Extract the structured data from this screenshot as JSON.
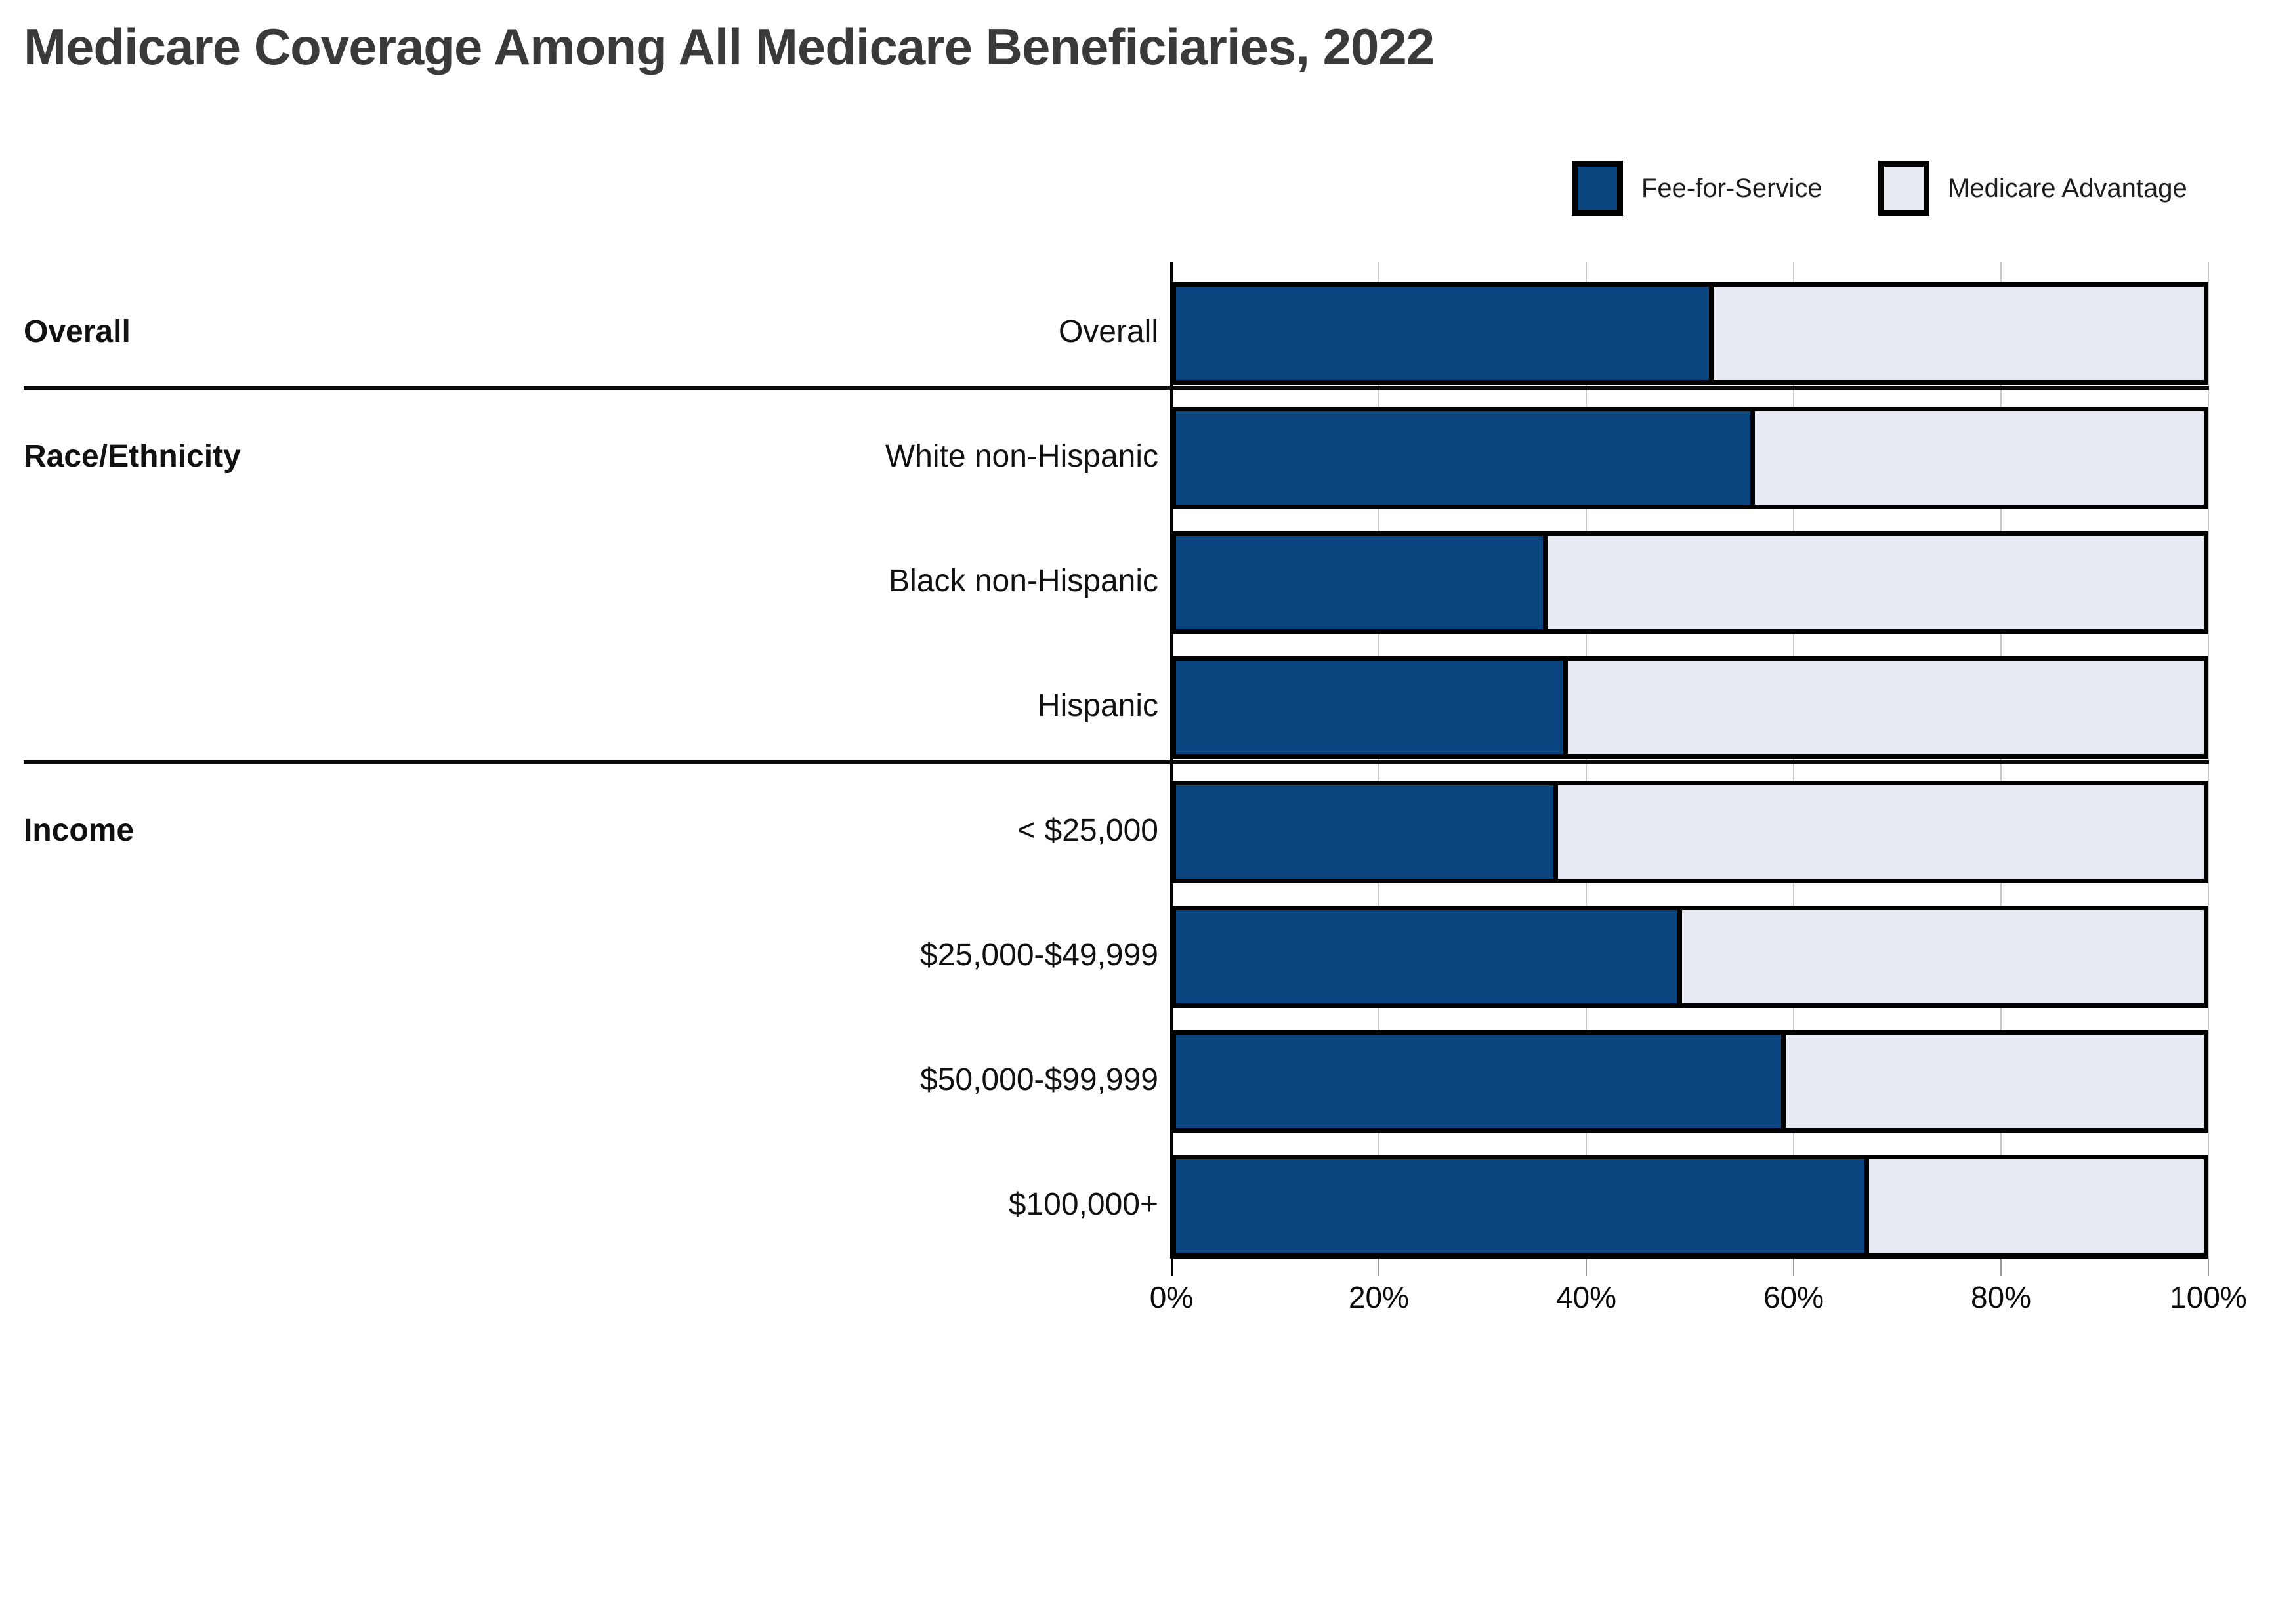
{
  "title": "Medicare Coverage Among All Medicare Beneficiaries, 2022",
  "legend": {
    "items": [
      {
        "label": "Fee-for-Service",
        "color": "#0b4580"
      },
      {
        "label": "Medicare Advantage",
        "color": "#e8ebf3"
      }
    ]
  },
  "colors": {
    "fee_for_service": "#0b4580",
    "medicare_advantage": "#e8ebf3",
    "bar_border": "#000000",
    "title_text": "#3a3a3a",
    "gridline": "#c9c9c9"
  },
  "chart_data": {
    "type": "bar",
    "orientation": "horizontal",
    "stacked": true,
    "title": "Medicare Coverage Among All Medicare Beneficiaries, 2022",
    "xlabel": "",
    "ylabel": "",
    "xlim": [
      0,
      100
    ],
    "x_tick_labels": [
      "0%",
      "20%",
      "40%",
      "60%",
      "80%",
      "100%"
    ],
    "grid": true,
    "legend_position": "top-right",
    "series_names": [
      "Fee-for-Service",
      "Medicare Advantage"
    ],
    "sections": [
      {
        "label": "Overall",
        "rows": [
          {
            "category": "Overall",
            "fee_for_service": 52,
            "medicare_advantage": 48
          }
        ]
      },
      {
        "label": "Race/Ethnicity",
        "rows": [
          {
            "category": "White non-Hispanic",
            "fee_for_service": 56,
            "medicare_advantage": 44
          },
          {
            "category": "Black non-Hispanic",
            "fee_for_service": 36,
            "medicare_advantage": 64
          },
          {
            "category": "Hispanic",
            "fee_for_service": 38,
            "medicare_advantage": 62
          }
        ]
      },
      {
        "label": "Income",
        "rows": [
          {
            "category": "< $25,000",
            "fee_for_service": 37,
            "medicare_advantage": 63
          },
          {
            "category": "$25,000-$49,999",
            "fee_for_service": 49,
            "medicare_advantage": 51
          },
          {
            "category": "$50,000-$99,999",
            "fee_for_service": 59,
            "medicare_advantage": 41
          },
          {
            "category": "$100,000+",
            "fee_for_service": 67,
            "medicare_advantage": 33
          }
        ]
      }
    ]
  }
}
